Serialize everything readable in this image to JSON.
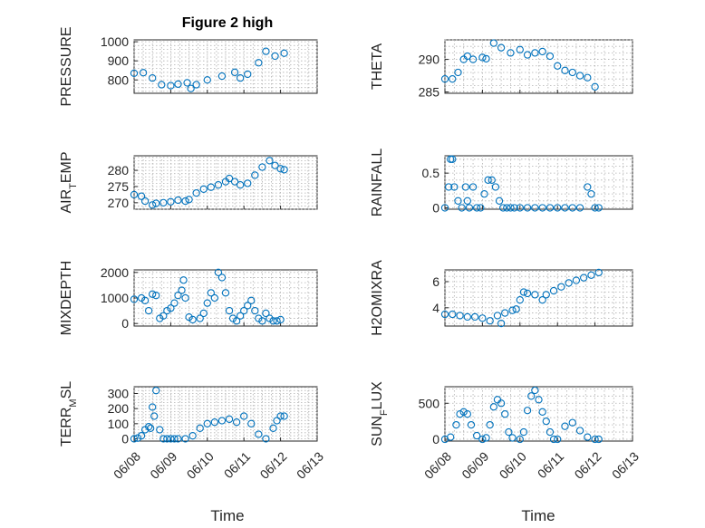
{
  "figure": {
    "title": "Figure 2 high",
    "marker_color": "#0072BD",
    "x_tick_labels": [
      "06/08",
      "06/09",
      "06/10",
      "06/11",
      "06/12",
      "06/13"
    ],
    "xlabel": "Time"
  },
  "chart_data": [
    {
      "type": "scatter",
      "panel": "pressure",
      "title": "Figure 2 high",
      "ylabel": "PRESSURE",
      "xlim": [
        0,
        5
      ],
      "ylim": [
        730,
        1010
      ],
      "yticks": [
        800,
        900,
        1000
      ],
      "grid": true,
      "minor_grid": true,
      "x": [
        0,
        0.25,
        0.5,
        0.75,
        1,
        1.2,
        1.45,
        1.55,
        1.7,
        2.0,
        2.4,
        2.75,
        2.9,
        3.1,
        3.4,
        3.6,
        3.85,
        4.1
      ],
      "y": [
        835,
        838,
        810,
        775,
        770,
        778,
        785,
        755,
        775,
        800,
        820,
        840,
        810,
        830,
        890,
        950,
        925,
        940
      ]
    },
    {
      "type": "scatter",
      "panel": "theta",
      "ylabel": "THETA",
      "xlim": [
        0,
        5
      ],
      "ylim": [
        284.8,
        293
      ],
      "yticks": [
        285,
        290
      ],
      "grid": true,
      "minor_grid": true,
      "x": [
        0,
        0.2,
        0.35,
        0.5,
        0.6,
        0.75,
        1.0,
        1.1,
        1.3,
        1.5,
        1.75,
        2.0,
        2.2,
        2.4,
        2.6,
        2.8,
        3.0,
        3.2,
        3.4,
        3.6,
        3.8,
        4.0
      ],
      "y": [
        287,
        287,
        288,
        290,
        290.5,
        290,
        290.3,
        290.1,
        292.5,
        291.8,
        291,
        291.5,
        290.7,
        291,
        291.2,
        290.5,
        289,
        288.3,
        288,
        287.5,
        287.2,
        285.8
      ]
    },
    {
      "type": "scatter",
      "panel": "air_temp",
      "ylabel": "AIR_TEMP",
      "xlim": [
        0,
        5
      ],
      "ylim": [
        268,
        284.5
      ],
      "yticks": [
        270,
        275,
        280
      ],
      "grid": true,
      "minor_grid": true,
      "x": [
        0,
        0.2,
        0.3,
        0.5,
        0.6,
        0.8,
        1.0,
        1.2,
        1.4,
        1.5,
        1.7,
        1.9,
        2.1,
        2.3,
        2.5,
        2.6,
        2.75,
        2.9,
        3.1,
        3.3,
        3.5,
        3.7,
        3.85,
        4.0,
        4.1
      ],
      "y": [
        272.5,
        272,
        270.5,
        269.3,
        269.8,
        270,
        270.3,
        270.8,
        270.5,
        271,
        273,
        274.2,
        274.8,
        275.5,
        276.5,
        277.5,
        276.5,
        275.5,
        276,
        278.5,
        281,
        283,
        281.5,
        280.5,
        280.2
      ]
    },
    {
      "type": "scatter",
      "panel": "rainfall",
      "ylabel": "RAINFALL",
      "xlim": [
        0,
        5
      ],
      "ylim": [
        -0.02,
        0.75
      ],
      "yticks": [
        0,
        0.5
      ],
      "grid": true,
      "minor_grid": true,
      "x": [
        0,
        0.1,
        0.15,
        0.2,
        0.25,
        0.35,
        0.45,
        0.55,
        0.6,
        0.65,
        0.75,
        0.85,
        0.95,
        1.05,
        1.15,
        1.25,
        1.35,
        1.45,
        1.55,
        1.65,
        1.75,
        1.85,
        2.0,
        2.2,
        2.4,
        2.6,
        2.8,
        3.0,
        3.2,
        3.4,
        3.6,
        3.8,
        3.9,
        4.0,
        4.1
      ],
      "y": [
        0,
        0.3,
        0.7,
        0.7,
        0.3,
        0.1,
        0,
        0.3,
        0.1,
        0,
        0.3,
        0,
        0,
        0.2,
        0.4,
        0.4,
        0.3,
        0.1,
        0,
        0,
        0,
        0,
        0,
        0,
        0,
        0,
        0,
        0,
        0,
        0,
        0,
        0.3,
        0.2,
        0,
        0
      ]
    },
    {
      "type": "scatter",
      "panel": "mixdepth",
      "ylabel": "MIXDEPTH",
      "xlim": [
        0,
        5
      ],
      "ylim": [
        -100,
        2100
      ],
      "yticks": [
        0,
        1000,
        2000
      ],
      "grid": true,
      "minor_grid": true,
      "x": [
        0,
        0.2,
        0.3,
        0.4,
        0.5,
        0.6,
        0.7,
        0.8,
        0.9,
        1.0,
        1.1,
        1.2,
        1.3,
        1.35,
        1.4,
        1.5,
        1.6,
        1.8,
        1.9,
        2.0,
        2.1,
        2.2,
        2.3,
        2.4,
        2.5,
        2.6,
        2.7,
        2.8,
        2.9,
        3.0,
        3.1,
        3.2,
        3.3,
        3.4,
        3.5,
        3.6,
        3.7,
        3.8,
        3.9,
        4.0
      ],
      "y": [
        950,
        1000,
        900,
        500,
        1150,
        1100,
        200,
        300,
        500,
        600,
        800,
        1100,
        1300,
        1700,
        1000,
        250,
        150,
        200,
        400,
        800,
        1200,
        1000,
        2000,
        1800,
        1200,
        500,
        200,
        100,
        300,
        500,
        700,
        900,
        500,
        200,
        100,
        400,
        200,
        100,
        100,
        150
      ]
    },
    {
      "type": "scatter",
      "panel": "h2omixra",
      "ylabel": "H2OMIXRA",
      "xlim": [
        0,
        5
      ],
      "ylim": [
        2.6,
        6.9
      ],
      "yticks": [
        4,
        6
      ],
      "grid": true,
      "minor_grid": true,
      "x": [
        0,
        0.2,
        0.4,
        0.6,
        0.8,
        1.0,
        1.2,
        1.4,
        1.5,
        1.6,
        1.8,
        1.9,
        2.0,
        2.1,
        2.2,
        2.4,
        2.6,
        2.7,
        2.9,
        3.1,
        3.3,
        3.5,
        3.7,
        3.9,
        4.1
      ],
      "y": [
        3.5,
        3.5,
        3.4,
        3.3,
        3.3,
        3.2,
        3.0,
        3.4,
        2.8,
        3.6,
        3.8,
        3.9,
        4.6,
        5.2,
        5.1,
        5.0,
        4.6,
        5.0,
        5.3,
        5.6,
        5.9,
        6.1,
        6.3,
        6.5,
        6.7
      ]
    },
    {
      "type": "scatter",
      "panel": "terr_msl",
      "ylabel": "TERR_MSL",
      "xlim": [
        0,
        5
      ],
      "ylim": [
        -15,
        345
      ],
      "yticks": [
        0,
        100,
        200,
        300
      ],
      "grid": true,
      "minor_grid": true,
      "x": [
        0,
        0.1,
        0.2,
        0.3,
        0.4,
        0.45,
        0.5,
        0.55,
        0.6,
        0.7,
        0.8,
        0.9,
        1.0,
        1.1,
        1.2,
        1.4,
        1.6,
        1.8,
        2.0,
        2.2,
        2.4,
        2.6,
        2.8,
        3.0,
        3.2,
        3.4,
        3.6,
        3.8,
        3.9,
        4.0,
        4.1
      ],
      "y": [
        0,
        5,
        20,
        60,
        80,
        70,
        210,
        150,
        320,
        60,
        0,
        0,
        0,
        0,
        0,
        0,
        20,
        70,
        100,
        110,
        120,
        130,
        110,
        150,
        100,
        30,
        0,
        70,
        120,
        150,
        150
      ]
    },
    {
      "type": "scatter",
      "panel": "sun_flux",
      "ylabel": "SUN_FLUX",
      "xlim": [
        0,
        5
      ],
      "ylim": [
        -25,
        730
      ],
      "yticks": [
        0,
        500
      ],
      "grid": true,
      "minor_grid": true,
      "x": [
        0,
        0.15,
        0.3,
        0.4,
        0.5,
        0.6,
        0.7,
        0.85,
        1.0,
        1.1,
        1.2,
        1.3,
        1.4,
        1.5,
        1.6,
        1.7,
        1.8,
        2.0,
        2.1,
        2.2,
        2.3,
        2.4,
        2.5,
        2.6,
        2.7,
        2.8,
        2.9,
        3.0,
        3.2,
        3.4,
        3.6,
        3.8,
        4.0,
        4.1
      ],
      "y": [
        0,
        30,
        200,
        350,
        380,
        350,
        200,
        50,
        0,
        20,
        200,
        450,
        550,
        500,
        350,
        100,
        20,
        0,
        100,
        400,
        600,
        680,
        550,
        380,
        250,
        100,
        0,
        0,
        180,
        230,
        120,
        30,
        0,
        0
      ]
    }
  ]
}
